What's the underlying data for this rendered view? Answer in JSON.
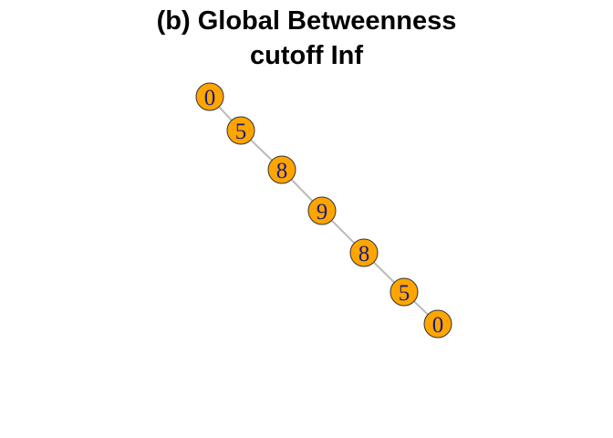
{
  "title": {
    "line1": "(b) Global Betweenness",
    "line2": "cutoff Inf"
  },
  "graph": {
    "node_color": "#FFA500",
    "node_border_color": "#333333",
    "label_color": "#1a1a80",
    "edge_color": "#BBBBBB",
    "nodes": [
      {
        "id": "n1",
        "label": "0"
      },
      {
        "id": "n2",
        "label": "5"
      },
      {
        "id": "n3",
        "label": "8"
      },
      {
        "id": "n4",
        "label": "9"
      },
      {
        "id": "n5",
        "label": "8"
      },
      {
        "id": "n6",
        "label": "5"
      },
      {
        "id": "n7",
        "label": "0"
      }
    ],
    "edges": [
      [
        "n1",
        "n2"
      ],
      [
        "n2",
        "n3"
      ],
      [
        "n3",
        "n4"
      ],
      [
        "n4",
        "n5"
      ],
      [
        "n5",
        "n6"
      ],
      [
        "n6",
        "n7"
      ]
    ]
  }
}
